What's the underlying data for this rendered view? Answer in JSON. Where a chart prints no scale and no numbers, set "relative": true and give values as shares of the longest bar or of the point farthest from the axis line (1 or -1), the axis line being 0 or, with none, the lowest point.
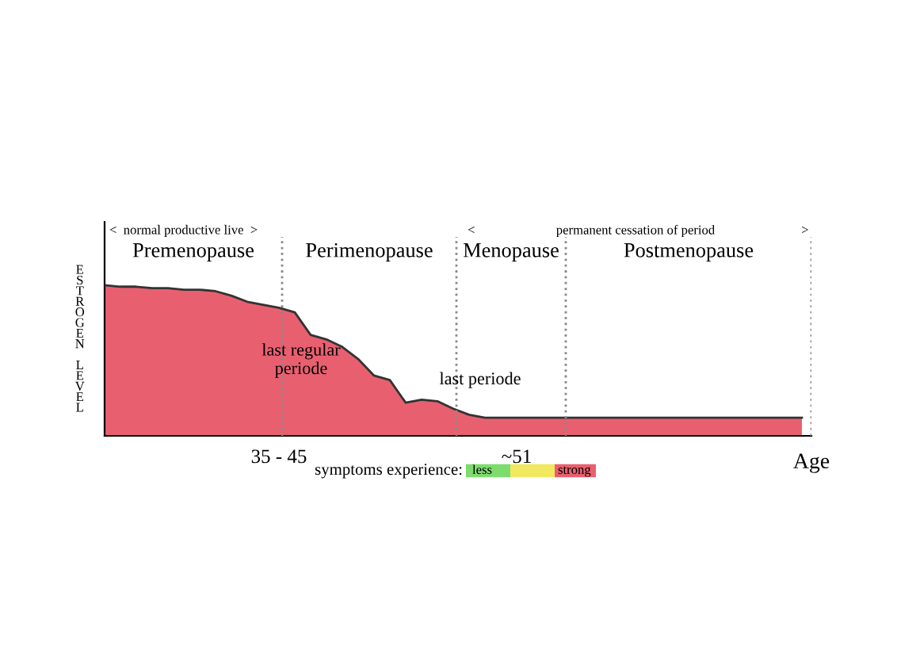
{
  "chart_data": {
    "type": "area",
    "relative": true,
    "xlabel": "Age",
    "ylabel": "ESTROGEN LEVEL",
    "categories": [
      null,
      null,
      null,
      null,
      null,
      null,
      null,
      null,
      null,
      null,
      null,
      "35 - 45",
      null,
      null,
      null,
      null,
      null,
      null,
      null,
      null,
      null,
      null,
      null,
      null,
      null,
      null,
      "~51",
      null,
      null,
      null,
      null,
      null,
      null,
      null,
      null,
      null,
      null,
      null,
      null,
      null,
      null,
      null,
      null,
      null,
      null
    ],
    "series": [
      {
        "color": "#e86070",
        "values": [
          1.0,
          0.99,
          0.99,
          0.98,
          0.98,
          0.97,
          0.97,
          0.96,
          0.93,
          0.89,
          0.87,
          0.85,
          0.82,
          0.67,
          0.64,
          0.59,
          0.51,
          0.4,
          0.37,
          0.22,
          0.24,
          0.23,
          0.18,
          0.14,
          0.12,
          0.12,
          0.12,
          0.12,
          0.12,
          0.12,
          0.12,
          0.12,
          0.12,
          0.12,
          0.12,
          0.12,
          0.12,
          0.12,
          0.12,
          0.12,
          0.12,
          0.12,
          0.12,
          0.12,
          0.12
        ]
      }
    ],
    "annotations": [
      "<  normal productive live  >",
      "Premenopause",
      "Perimenopause",
      "Menopause",
      "Postmenopause",
      "<",
      "permanent cessation of period",
      ">",
      "last regular\nperiode",
      "last periode",
      "symptoms experience:",
      "less",
      "strong"
    ],
    "grid": false,
    "legend": false
  }
}
